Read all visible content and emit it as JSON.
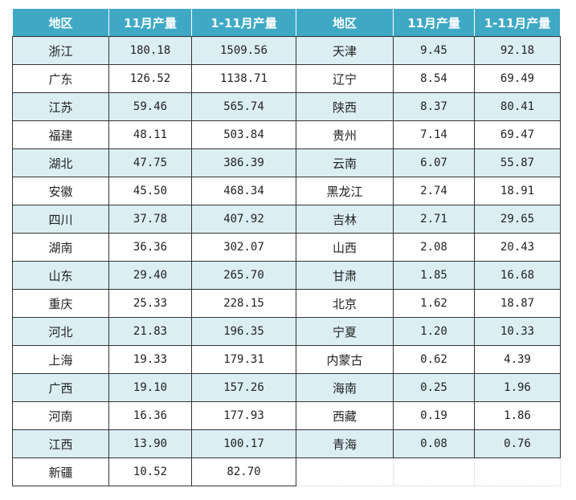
{
  "table": {
    "header": [
      "地区",
      "11月产量",
      "1-11月产量",
      "地区",
      "11月产量",
      "1-11月产量"
    ],
    "rows": [
      [
        "浙江",
        "180.18",
        "1509.56",
        "天津",
        "9.45",
        "92.18"
      ],
      [
        "广东",
        "126.52",
        "1138.71",
        "辽宁",
        "8.54",
        "69.49"
      ],
      [
        "江苏",
        "59.46",
        "565.74",
        "陕西",
        "8.37",
        "80.41"
      ],
      [
        "福建",
        "48.11",
        "503.84",
        "贵州",
        "7.14",
        "69.47"
      ],
      [
        "湖北",
        "47.75",
        "386.39",
        "云南",
        "6.07",
        "55.87"
      ],
      [
        "安徽",
        "45.50",
        "468.34",
        "黑龙江",
        "2.74",
        "18.91"
      ],
      [
        "四川",
        "37.78",
        "407.92",
        "吉林",
        "2.71",
        "29.65"
      ],
      [
        "湖南",
        "36.36",
        "302.07",
        "山西",
        "2.08",
        "20.43"
      ],
      [
        "山东",
        "29.40",
        "265.70",
        "甘肃",
        "1.85",
        "16.68"
      ],
      [
        "重庆",
        "25.33",
        "228.15",
        "北京",
        "1.62",
        "18.87"
      ],
      [
        "河北",
        "21.83",
        "196.35",
        "宁夏",
        "1.20",
        "10.33"
      ],
      [
        "上海",
        "19.33",
        "179.31",
        "内蒙古",
        "0.62",
        "4.39"
      ],
      [
        "广西",
        "19.10",
        "157.26",
        "海南",
        "0.25",
        "1.96"
      ],
      [
        "河南",
        "16.36",
        "177.93",
        "西藏",
        "0.19",
        "1.86"
      ],
      [
        "江西",
        "13.90",
        "100.17",
        "青海",
        "0.08",
        "0.76"
      ],
      [
        "新疆",
        "10.52",
        "82.70"
      ]
    ]
  }
}
